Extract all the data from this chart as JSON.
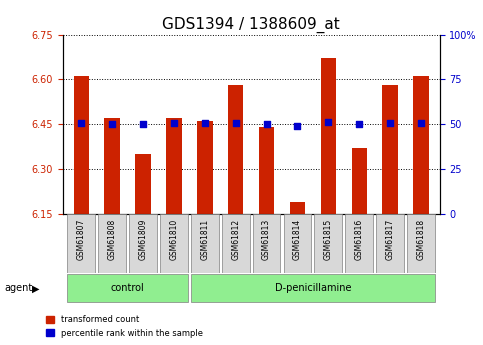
{
  "title": "GDS1394 / 1388609_at",
  "samples": [
    "GSM61807",
    "GSM61808",
    "GSM61809",
    "GSM61810",
    "GSM61811",
    "GSM61812",
    "GSM61813",
    "GSM61814",
    "GSM61815",
    "GSM61816",
    "GSM61817",
    "GSM61818"
  ],
  "red_values": [
    6.61,
    6.47,
    6.35,
    6.47,
    6.46,
    6.58,
    6.44,
    6.19,
    6.67,
    6.37,
    6.58,
    6.61
  ],
  "blue_values": [
    6.455,
    6.45,
    6.45,
    6.455,
    6.455,
    6.453,
    6.45,
    6.443,
    6.458,
    6.452,
    6.455,
    6.455
  ],
  "y_min": 6.15,
  "y_max": 6.75,
  "yticks_left": [
    6.15,
    6.3,
    6.45,
    6.6,
    6.75
  ],
  "yticks_right": [
    0,
    25,
    50,
    75,
    100
  ],
  "bar_color": "#cc2200",
  "dot_color": "#0000cc",
  "bg_color": "#ffffff",
  "plot_bg_color": "#ffffff",
  "n_control": 4,
  "n_treatment": 8,
  "control_label": "control",
  "treatment_label": "D-penicillamine",
  "agent_label": "agent",
  "legend_red": "transformed count",
  "legend_blue": "percentile rank within the sample",
  "tick_label_color_left": "#cc2200",
  "tick_label_color_right": "#0000cc",
  "title_fontsize": 11,
  "bar_width": 0.5
}
